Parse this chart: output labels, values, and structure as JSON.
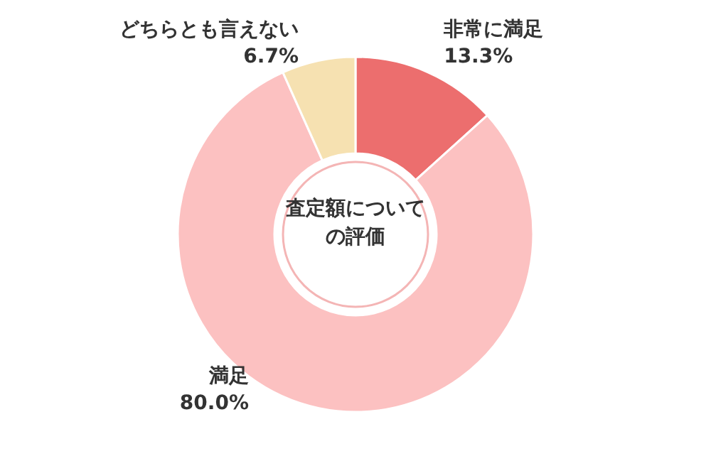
{
  "chart_data": {
    "type": "donut",
    "title": "査定額についての評価",
    "categories": [
      "非常に満足",
      "満足",
      "どちらとも言えない"
    ],
    "values": [
      13.3,
      80.0,
      6.7
    ],
    "value_labels": [
      "13.3%",
      "80.0%",
      "6.7%"
    ],
    "colors": [
      "#ec6e6e",
      "#fcc1c1",
      "#f6e1b1"
    ]
  }
}
